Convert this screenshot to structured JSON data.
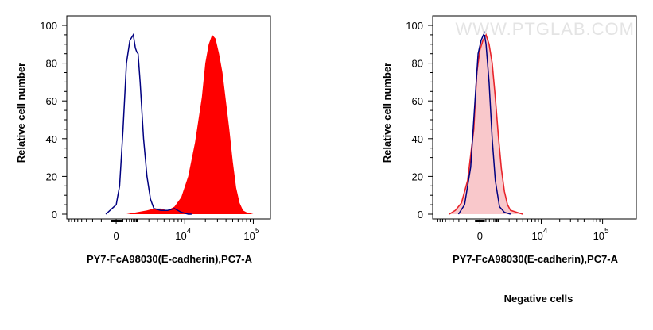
{
  "chart_data": [
    {
      "type": "area",
      "ylabel": "Relative cell number",
      "xlabel": "PY7-FcA98030(E-cadherin),PC7-A",
      "ylim": [
        0,
        100
      ],
      "yticks": [
        "0",
        "20",
        "40",
        "60",
        "80",
        "100"
      ],
      "xticks": [
        {
          "base": "0",
          "exp": ""
        },
        {
          "base": "10",
          "exp": "4"
        },
        {
          "base": "10",
          "exp": "5"
        }
      ],
      "xticks_pos_units": [
        0,
        1,
        2
      ],
      "xlim_units": [
        -0.72,
        2.25
      ],
      "grid": false,
      "series": [
        {
          "style": "filled",
          "color": "#ff0000",
          "x": [
            0.15,
            0.3,
            0.45,
            0.55,
            0.65,
            0.75,
            0.85,
            0.95,
            1.05,
            1.15,
            1.25,
            1.3,
            1.35,
            1.4,
            1.45,
            1.5,
            1.55,
            1.6,
            1.65,
            1.7,
            1.75,
            1.8,
            1.85,
            1.9,
            2.0
          ],
          "y": [
            0,
            1,
            2,
            3,
            3,
            2,
            4,
            9,
            20,
            38,
            62,
            80,
            90,
            95,
            93,
            85,
            75,
            60,
            45,
            28,
            14,
            6,
            2,
            1,
            0
          ]
        },
        {
          "style": "line",
          "color": "#000080",
          "x": [
            -0.15,
            0,
            0.05,
            0.1,
            0.15,
            0.2,
            0.25,
            0.28,
            0.3,
            0.32,
            0.35,
            0.4,
            0.45,
            0.5,
            0.55,
            0.65,
            0.75,
            0.85,
            0.95,
            1.05,
            1.1
          ],
          "y": [
            0,
            5,
            15,
            45,
            80,
            92,
            95,
            88,
            86,
            85,
            70,
            40,
            20,
            8,
            3,
            2,
            2,
            3,
            1,
            0,
            0
          ]
        }
      ]
    },
    {
      "type": "area",
      "ylabel": "Relative cell number",
      "xlabel": "PY7-FcA98030(E-cadherin),PC7-A",
      "caption": "Negative cells",
      "watermark": "WWW.PTGLAB.COM",
      "ylim": [
        0,
        100
      ],
      "yticks": [
        "0",
        "20",
        "40",
        "60",
        "80",
        "100"
      ],
      "xticks": [
        {
          "base": "0",
          "exp": ""
        },
        {
          "base": "10",
          "exp": "4"
        },
        {
          "base": "10",
          "exp": "5"
        }
      ],
      "xticks_pos_units": [
        0,
        1,
        2
      ],
      "xlim_units": [
        -0.77,
        2.55
      ],
      "grid": false,
      "series": [
        {
          "style": "filled-outline",
          "color": "#e8242b",
          "fill": "#f9c8cb",
          "x": [
            -0.5,
            -0.4,
            -0.3,
            -0.2,
            -0.1,
            -0.05,
            0,
            0.05,
            0.1,
            0.15,
            0.2,
            0.25,
            0.3,
            0.35,
            0.4,
            0.45,
            0.5,
            0.6,
            0.7
          ],
          "y": [
            0,
            2,
            6,
            18,
            45,
            75,
            87,
            92,
            95,
            90,
            80,
            62,
            42,
            24,
            12,
            5,
            2,
            1,
            0
          ]
        },
        {
          "style": "line",
          "color": "#000080",
          "x": [
            -0.35,
            -0.25,
            -0.15,
            -0.08,
            -0.03,
            0.02,
            0.07,
            0.1,
            0.15,
            0.2,
            0.25,
            0.32,
            0.4,
            0.5
          ],
          "y": [
            0,
            5,
            25,
            60,
            85,
            92,
            96,
            90,
            70,
            40,
            18,
            4,
            1,
            0
          ]
        }
      ]
    }
  ]
}
